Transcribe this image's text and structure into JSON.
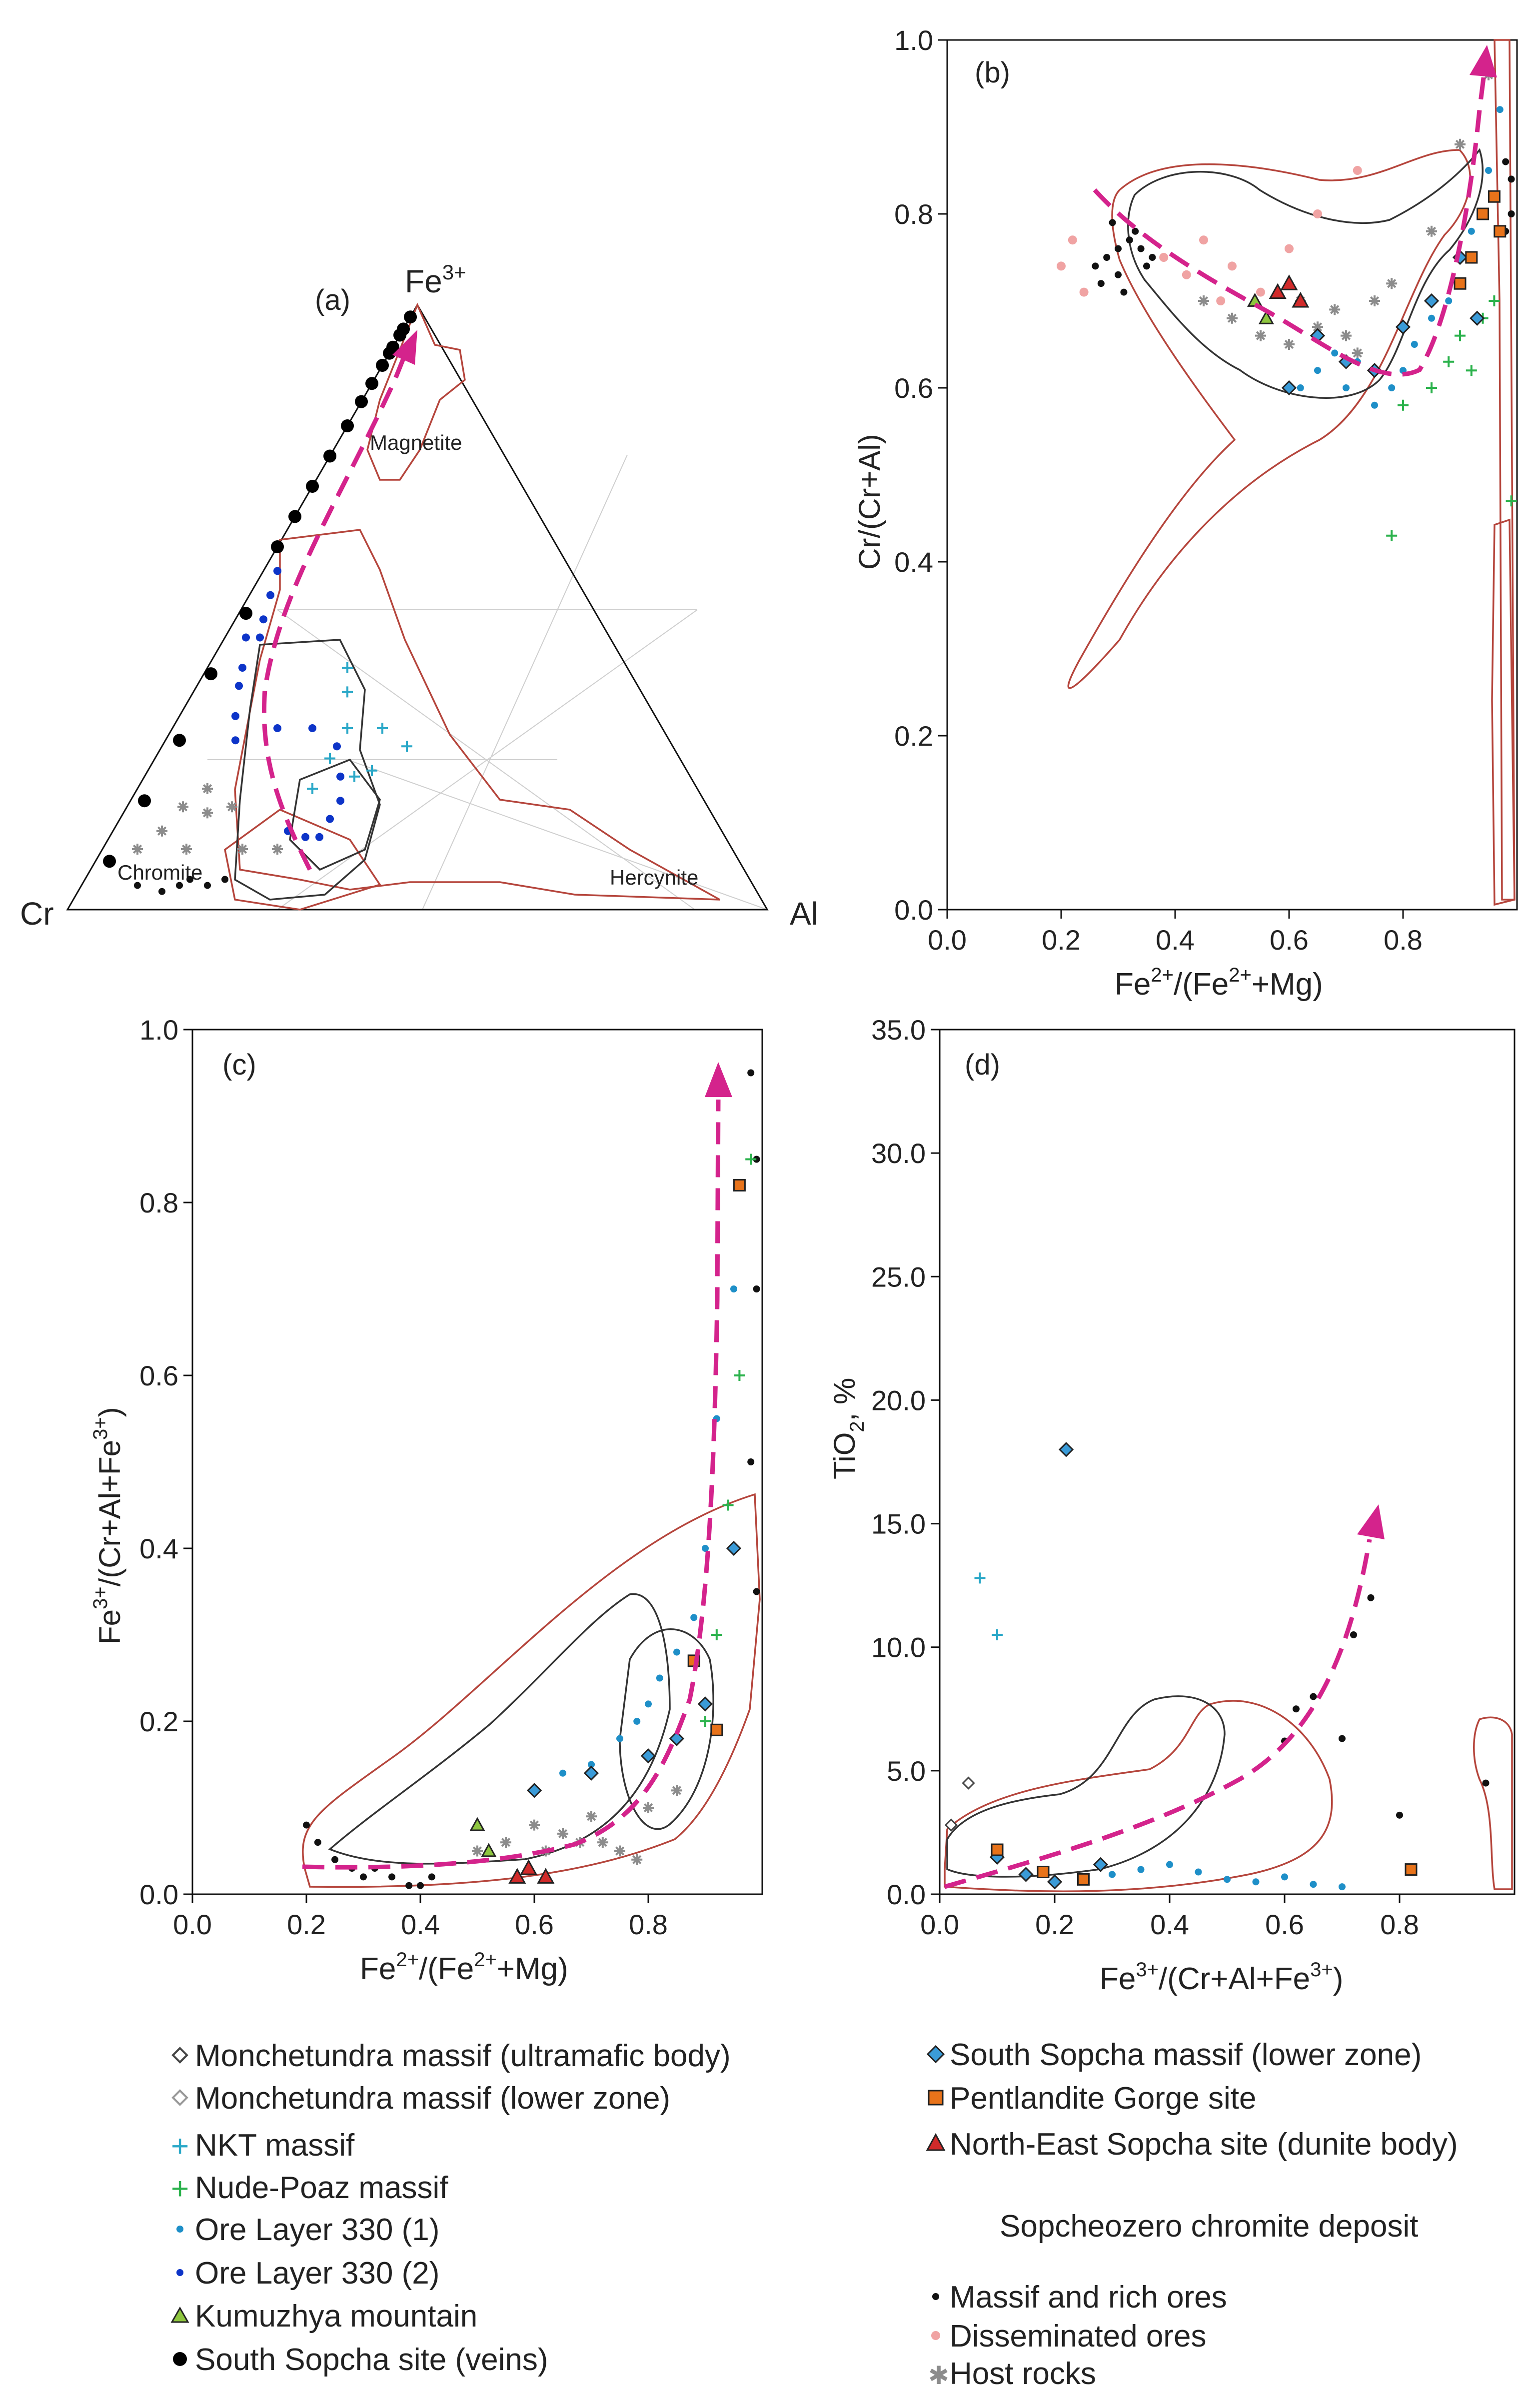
{
  "colors": {
    "monchetundra": "#444444",
    "nkt": "#2aa8c8",
    "nude_poaz": "#2bb24c",
    "ore330_1": "#1e8fc8",
    "ore330_2": "#0d34c8",
    "kumuzhya": "#8ec63f",
    "south_sopcha_veins": "#000000",
    "south_sopcha_massif": "#3a9bd8",
    "pentlandite": "#e8731a",
    "ne_sopcha": "#d12a2a",
    "massif_rich": "#111111",
    "disseminated": "#f0a3a3",
    "host_rocks": "#8c8c8c",
    "trend": "#d4238c",
    "field_red": "#b5453c",
    "field_black": "#333333"
  },
  "chart_data": [
    {
      "panel_label": "(a)",
      "type": "ternary",
      "apex_labels": [
        "Fe3+",
        "Cr",
        "Al"
      ],
      "apex_top_base": "Fe",
      "apex_top_sup": "3+",
      "apex_left": "Cr",
      "apex_right": "Al",
      "field_labels": [
        "Magnetite",
        "Chromite",
        "Hercynite"
      ],
      "series": [
        {
          "name": "South Sopcha site (veins)",
          "points_cr_al_fe": [
            [
              0.02,
              0,
              0.98
            ],
            [
              0.04,
              0,
              0.96
            ],
            [
              0.05,
              0,
              0.95
            ],
            [
              0.07,
              0,
              0.93
            ],
            [
              0.08,
              0,
              0.92
            ],
            [
              0.1,
              0,
              0.9
            ],
            [
              0.13,
              0,
              0.87
            ],
            [
              0.16,
              0,
              0.84
            ],
            [
              0.2,
              0,
              0.8
            ],
            [
              0.25,
              0,
              0.75
            ],
            [
              0.3,
              0,
              0.7
            ],
            [
              0.35,
              0,
              0.65
            ],
            [
              0.4,
              0,
              0.6
            ],
            [
              0.5,
              0.01,
              0.49
            ],
            [
              0.6,
              0.01,
              0.39
            ],
            [
              0.7,
              0.02,
              0.28
            ],
            [
              0.8,
              0.02,
              0.18
            ],
            [
              0.9,
              0.02,
              0.08
            ]
          ]
        },
        {
          "name": "Ore Layer 330 (2)",
          "points_cr_al_fe": [
            [
              0.42,
              0.02,
              0.56
            ],
            [
              0.45,
              0.03,
              0.52
            ],
            [
              0.48,
              0.04,
              0.48
            ],
            [
              0.5,
              0.05,
              0.45
            ],
            [
              0.52,
              0.03,
              0.45
            ],
            [
              0.55,
              0.05,
              0.4
            ],
            [
              0.57,
              0.06,
              0.37
            ],
            [
              0.6,
              0.08,
              0.32
            ],
            [
              0.62,
              0.1,
              0.28
            ],
            [
              0.55,
              0.15,
              0.3
            ],
            [
              0.5,
              0.2,
              0.3
            ],
            [
              0.48,
              0.25,
              0.27
            ],
            [
              0.5,
              0.28,
              0.22
            ],
            [
              0.52,
              0.3,
              0.18
            ],
            [
              0.55,
              0.3,
              0.15
            ],
            [
              0.58,
              0.3,
              0.12
            ],
            [
              0.6,
              0.28,
              0.12
            ],
            [
              0.62,
              0.25,
              0.13
            ]
          ]
        },
        {
          "name": "NKT massif",
          "points_cr_al_fe": [
            [
              0.4,
              0.2,
              0.4
            ],
            [
              0.42,
              0.22,
              0.36
            ],
            [
              0.45,
              0.25,
              0.3
            ],
            [
              0.5,
              0.25,
              0.25
            ],
            [
              0.55,
              0.25,
              0.2
            ],
            [
              0.48,
              0.3,
              0.22
            ],
            [
              0.45,
              0.32,
              0.23
            ],
            [
              0.4,
              0.3,
              0.3
            ],
            [
              0.38,
              0.35,
              0.27
            ]
          ]
        },
        {
          "name": "Host rocks",
          "points_cr_al_fe": [
            [
              0.75,
              0.08,
              0.17
            ],
            [
              0.8,
              0.07,
              0.13
            ],
            [
              0.85,
              0.05,
              0.1
            ],
            [
              0.7,
              0.1,
              0.2
            ],
            [
              0.72,
              0.12,
              0.16
            ],
            [
              0.68,
              0.15,
              0.17
            ],
            [
              0.78,
              0.12,
              0.1
            ],
            [
              0.7,
              0.2,
              0.1
            ],
            [
              0.65,
              0.25,
              0.1
            ]
          ]
        },
        {
          "name": "Massif and rich ores",
          "points_cr_al_fe": [
            [
              0.85,
              0.12,
              0.03
            ],
            [
              0.8,
              0.15,
              0.05
            ],
            [
              0.78,
              0.18,
              0.04
            ],
            [
              0.75,
              0.2,
              0.05
            ],
            [
              0.82,
              0.14,
              0.04
            ],
            [
              0.88,
              0.08,
              0.04
            ]
          ]
        }
      ]
    },
    {
      "panel_label": "(b)",
      "type": "scatter",
      "xlabel_parts": [
        "Fe",
        "2+",
        "/(Fe",
        "2+",
        "+Mg)"
      ],
      "ylabel": "Cr/(Cr+Al)",
      "xlim": [
        0,
        1.0
      ],
      "ylim": [
        0,
        1.0
      ],
      "xticks": [
        "0.0",
        "0.2",
        "0.4",
        "0.6",
        "0.8"
      ],
      "yticks": [
        "0.0",
        "0.2",
        "0.4",
        "0.6",
        "0.8",
        "1.0"
      ],
      "series": [
        {
          "name": "Massif and rich ores",
          "x": [
            0.26,
            0.28,
            0.3,
            0.32,
            0.34,
            0.36,
            0.3,
            0.27,
            0.33,
            0.29,
            0.31,
            0.35,
            0.98,
            0.99,
            0.98,
            0.99
          ],
          "y": [
            0.74,
            0.75,
            0.76,
            0.77,
            0.76,
            0.75,
            0.73,
            0.72,
            0.78,
            0.79,
            0.71,
            0.74,
            0.86,
            0.8,
            0.78,
            0.84
          ]
        },
        {
          "name": "Disseminated ores",
          "x": [
            0.2,
            0.22,
            0.24,
            0.38,
            0.42,
            0.45,
            0.48,
            0.5,
            0.55,
            0.6,
            0.65,
            0.72
          ],
          "y": [
            0.74,
            0.77,
            0.71,
            0.75,
            0.73,
            0.77,
            0.7,
            0.74,
            0.71,
            0.76,
            0.8,
            0.85
          ]
        },
        {
          "name": "Host rocks",
          "x": [
            0.45,
            0.5,
            0.55,
            0.6,
            0.62,
            0.65,
            0.68,
            0.7,
            0.72,
            0.75,
            0.78,
            0.85,
            0.9,
            0.95
          ],
          "y": [
            0.7,
            0.68,
            0.66,
            0.65,
            0.7,
            0.67,
            0.69,
            0.66,
            0.64,
            0.7,
            0.72,
            0.78,
            0.88,
            0.96
          ]
        },
        {
          "name": "Ore Layer 330 (1)",
          "x": [
            0.62,
            0.65,
            0.68,
            0.7,
            0.72,
            0.75,
            0.78,
            0.8,
            0.82,
            0.85,
            0.88,
            0.9,
            0.92,
            0.95,
            0.97
          ],
          "y": [
            0.6,
            0.62,
            0.64,
            0.6,
            0.63,
            0.58,
            0.6,
            0.62,
            0.65,
            0.68,
            0.7,
            0.72,
            0.78,
            0.85,
            0.92
          ]
        },
        {
          "name": "Nude-Poaz massif",
          "x": [
            0.8,
            0.85,
            0.88,
            0.9,
            0.92,
            0.94,
            0.96,
            0.78,
            0.99
          ],
          "y": [
            0.58,
            0.6,
            0.63,
            0.66,
            0.62,
            0.68,
            0.7,
            0.43,
            0.47
          ]
        },
        {
          "name": "South Sopcha massif (lower zone)",
          "x": [
            0.6,
            0.65,
            0.7,
            0.75,
            0.8,
            0.85,
            0.9,
            0.93
          ],
          "y": [
            0.6,
            0.66,
            0.63,
            0.62,
            0.67,
            0.7,
            0.75,
            0.68
          ]
        },
        {
          "name": "Pentlandite Gorge site",
          "x": [
            0.9,
            0.92,
            0.94,
            0.96,
            0.97
          ],
          "y": [
            0.72,
            0.75,
            0.8,
            0.82,
            0.78
          ]
        },
        {
          "name": "North-East Sopcha site (dunite body)",
          "x": [
            0.58,
            0.6,
            0.62
          ],
          "y": [
            0.71,
            0.72,
            0.7
          ]
        },
        {
          "name": "Kumuzhya mountain",
          "x": [
            0.54,
            0.56
          ],
          "y": [
            0.7,
            0.68
          ]
        }
      ]
    },
    {
      "panel_label": "(c)",
      "type": "scatter",
      "xlabel_parts": [
        "Fe",
        "2+",
        "/(Fe",
        "2+",
        "+Mg)"
      ],
      "ylabel_parts": [
        "Fe",
        "3+",
        "/(Cr+Al+Fe",
        "3+",
        ")"
      ],
      "xlim": [
        0,
        1.0
      ],
      "ylim": [
        0,
        1.0
      ],
      "xticks": [
        "0.0",
        "0.2",
        "0.4",
        "0.6",
        "0.8"
      ],
      "yticks": [
        "0.0",
        "0.2",
        "0.4",
        "0.6",
        "0.8",
        "1.0"
      ],
      "series": [
        {
          "name": "Massif and rich ores",
          "x": [
            0.2,
            0.22,
            0.25,
            0.28,
            0.3,
            0.32,
            0.35,
            0.38,
            0.4,
            0.42,
            0.98,
            0.99,
            0.99,
            0.98,
            0.99
          ],
          "y": [
            0.08,
            0.06,
            0.04,
            0.03,
            0.02,
            0.03,
            0.02,
            0.01,
            0.01,
            0.02,
            0.95,
            0.85,
            0.7,
            0.5,
            0.35
          ]
        },
        {
          "name": "Host rocks",
          "x": [
            0.5,
            0.55,
            0.6,
            0.62,
            0.65,
            0.68,
            0.7,
            0.72,
            0.75,
            0.78,
            0.8,
            0.85
          ],
          "y": [
            0.05,
            0.06,
            0.08,
            0.05,
            0.07,
            0.06,
            0.09,
            0.06,
            0.05,
            0.04,
            0.1,
            0.12
          ]
        },
        {
          "name": "Ore Layer 330 (1)",
          "x": [
            0.6,
            0.65,
            0.7,
            0.75,
            0.78,
            0.8,
            0.82,
            0.85,
            0.88,
            0.9,
            0.92,
            0.95
          ],
          "y": [
            0.12,
            0.14,
            0.15,
            0.18,
            0.2,
            0.22,
            0.25,
            0.28,
            0.32,
            0.4,
            0.55,
            0.7
          ]
        },
        {
          "name": "Nude-Poaz massif",
          "x": [
            0.9,
            0.92,
            0.94,
            0.96,
            0.98
          ],
          "y": [
            0.2,
            0.3,
            0.45,
            0.6,
            0.85
          ]
        },
        {
          "name": "South Sopcha massif (lower zone)",
          "x": [
            0.6,
            0.7,
            0.8,
            0.85,
            0.9,
            0.95
          ],
          "y": [
            0.12,
            0.14,
            0.16,
            0.18,
            0.22,
            0.4
          ]
        },
        {
          "name": "Pentlandite Gorge site",
          "x": [
            0.88,
            0.92,
            0.96
          ],
          "y": [
            0.27,
            0.19,
            0.82
          ]
        },
        {
          "name": "North-East Sopcha site (dunite body)",
          "x": [
            0.57,
            0.59,
            0.62
          ],
          "y": [
            0.02,
            0.03,
            0.02
          ]
        },
        {
          "name": "Kumuzhya mountain",
          "x": [
            0.5,
            0.52
          ],
          "y": [
            0.08,
            0.05
          ]
        }
      ]
    },
    {
      "panel_label": "(d)",
      "type": "scatter",
      "xlabel_parts": [
        "Fe",
        "3+",
        "/(Cr+Al+Fe",
        "3+",
        ")"
      ],
      "ylabel_parts": [
        "TiO",
        "2",
        ", %"
      ],
      "xlim": [
        0,
        1.0
      ],
      "ylim": [
        0,
        35.0
      ],
      "xticks": [
        "0.0",
        "0.2",
        "0.4",
        "0.6",
        "0.8"
      ],
      "yticks": [
        "0.0",
        "5.0",
        "10.0",
        "15.0",
        "20.0",
        "25.0",
        "30.0",
        "35.0"
      ],
      "series": [
        {
          "name": "South Sopcha massif (lower zone)",
          "x": [
            0.22,
            0.1,
            0.15,
            0.2,
            0.28
          ],
          "y": [
            18.0,
            1.5,
            0.8,
            0.5,
            1.2
          ]
        },
        {
          "name": "NKT massif",
          "x": [
            0.07,
            0.1
          ],
          "y": [
            12.8,
            10.5
          ]
        },
        {
          "name": "Massif and rich ores",
          "x": [
            0.6,
            0.62,
            0.65,
            0.7,
            0.72,
            0.75,
            0.8,
            0.95
          ],
          "y": [
            6.2,
            7.5,
            8.0,
            6.3,
            10.5,
            12.0,
            3.2,
            4.5
          ]
        },
        {
          "name": "Ore Layer 330 (1)",
          "x": [
            0.3,
            0.35,
            0.4,
            0.45,
            0.5,
            0.55,
            0.6,
            0.65,
            0.7
          ],
          "y": [
            0.8,
            1.0,
            1.2,
            0.9,
            0.6,
            0.5,
            0.7,
            0.4,
            0.3
          ]
        },
        {
          "name": "Pentlandite Gorge site",
          "x": [
            0.1,
            0.18,
            0.25,
            0.82
          ],
          "y": [
            1.8,
            0.9,
            0.6,
            1.0
          ]
        },
        {
          "name": "Monchetundra massif (ultramafic body)",
          "x": [
            0.02,
            0.05
          ],
          "y": [
            2.8,
            4.5
          ]
        }
      ]
    }
  ],
  "legend": {
    "left": [
      "Monchetundra massif (ultramafic body)",
      "Monchetundra massif (lower zone)",
      "NKT massif",
      "Nude-Poaz massif",
      "Ore Layer 330 (1)",
      "Ore Layer 330 (2)",
      "Kumuzhya mountain",
      "South Sopcha site (veins)"
    ],
    "right_top": [
      "South Sopcha massif (lower zone)",
      "Pentlandite Gorge site",
      "North-East Sopcha site (dunite body)"
    ],
    "deposit_heading": "Sopcheozero chromite deposit",
    "right_bottom": [
      "Massif and rich ores",
      "Disseminated ores",
      "Host rocks"
    ]
  }
}
